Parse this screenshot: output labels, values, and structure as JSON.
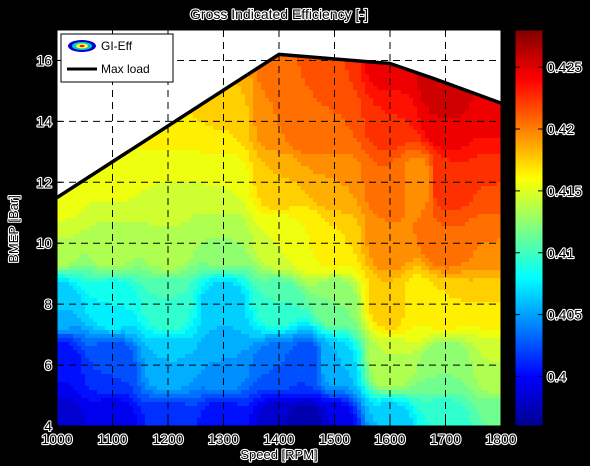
{
  "chart_data": {
    "type": "contour",
    "title": "Gross Indicated Efficiency [-]",
    "xlabel": "Speed [RPM]",
    "ylabel": "BMEP [Bar]",
    "xlim": [
      1000,
      1800
    ],
    "ylim": [
      4,
      17
    ],
    "xticks": [
      1000,
      1100,
      1200,
      1300,
      1400,
      1500,
      1600,
      1700,
      1800
    ],
    "yticks": [
      4,
      6,
      8,
      10,
      12,
      14,
      16
    ],
    "grid": true,
    "colorbar": {
      "min": 0.396,
      "max": 0.428,
      "ticks": [
        0.4,
        0.405,
        0.41,
        0.415,
        0.42,
        0.425
      ]
    },
    "legend": {
      "placement": "top-left",
      "entries": [
        "GI-Eff",
        "Max load"
      ]
    },
    "max_load": {
      "x": [
        1000,
        1400,
        1600,
        1680,
        1800
      ],
      "y": [
        11.5,
        16.2,
        15.9,
        15.4,
        14.6
      ]
    },
    "anchors": [
      {
        "x": 1000,
        "y": 4,
        "v": 0.398
      },
      {
        "x": 1000,
        "y": 6,
        "v": 0.4
      },
      {
        "x": 1000,
        "y": 8,
        "v": 0.406
      },
      {
        "x": 1000,
        "y": 10,
        "v": 0.414
      },
      {
        "x": 1000,
        "y": 11.5,
        "v": 0.416
      },
      {
        "x": 1100,
        "y": 4,
        "v": 0.399
      },
      {
        "x": 1100,
        "y": 6,
        "v": 0.402
      },
      {
        "x": 1100,
        "y": 8,
        "v": 0.408
      },
      {
        "x": 1100,
        "y": 10,
        "v": 0.414
      },
      {
        "x": 1100,
        "y": 12.5,
        "v": 0.416
      },
      {
        "x": 1200,
        "y": 4,
        "v": 0.401
      },
      {
        "x": 1200,
        "y": 6,
        "v": 0.406
      },
      {
        "x": 1200,
        "y": 8,
        "v": 0.41
      },
      {
        "x": 1200,
        "y": 10,
        "v": 0.414
      },
      {
        "x": 1200,
        "y": 12,
        "v": 0.415
      },
      {
        "x": 1200,
        "y": 14,
        "v": 0.417
      },
      {
        "x": 1300,
        "y": 4,
        "v": 0.4
      },
      {
        "x": 1300,
        "y": 6,
        "v": 0.405
      },
      {
        "x": 1300,
        "y": 8,
        "v": 0.406
      },
      {
        "x": 1300,
        "y": 10,
        "v": 0.413
      },
      {
        "x": 1300,
        "y": 12,
        "v": 0.415
      },
      {
        "x": 1300,
        "y": 14,
        "v": 0.417
      },
      {
        "x": 1300,
        "y": 15.2,
        "v": 0.418
      },
      {
        "x": 1400,
        "y": 4,
        "v": 0.398
      },
      {
        "x": 1400,
        "y": 6,
        "v": 0.403
      },
      {
        "x": 1400,
        "y": 8,
        "v": 0.41
      },
      {
        "x": 1400,
        "y": 10,
        "v": 0.415
      },
      {
        "x": 1400,
        "y": 12,
        "v": 0.418
      },
      {
        "x": 1400,
        "y": 14,
        "v": 0.42
      },
      {
        "x": 1400,
        "y": 16,
        "v": 0.421
      },
      {
        "x": 1450,
        "y": 4,
        "v": 0.397
      },
      {
        "x": 1450,
        "y": 6,
        "v": 0.402
      },
      {
        "x": 1450,
        "y": 10,
        "v": 0.416
      },
      {
        "x": 1450,
        "y": 14,
        "v": 0.421
      },
      {
        "x": 1500,
        "y": 4,
        "v": 0.399
      },
      {
        "x": 1500,
        "y": 6,
        "v": 0.406
      },
      {
        "x": 1500,
        "y": 8,
        "v": 0.412
      },
      {
        "x": 1500,
        "y": 10,
        "v": 0.417
      },
      {
        "x": 1500,
        "y": 12,
        "v": 0.419
      },
      {
        "x": 1500,
        "y": 14,
        "v": 0.421
      },
      {
        "x": 1500,
        "y": 16,
        "v": 0.422
      },
      {
        "x": 1600,
        "y": 4,
        "v": 0.406
      },
      {
        "x": 1600,
        "y": 6,
        "v": 0.414
      },
      {
        "x": 1600,
        "y": 8,
        "v": 0.418
      },
      {
        "x": 1600,
        "y": 10,
        "v": 0.42
      },
      {
        "x": 1600,
        "y": 12,
        "v": 0.421
      },
      {
        "x": 1600,
        "y": 14,
        "v": 0.423
      },
      {
        "x": 1600,
        "y": 15.9,
        "v": 0.425
      },
      {
        "x": 1650,
        "y": 8,
        "v": 0.416
      },
      {
        "x": 1650,
        "y": 12,
        "v": 0.419
      },
      {
        "x": 1700,
        "y": 4,
        "v": 0.409
      },
      {
        "x": 1700,
        "y": 6,
        "v": 0.412
      },
      {
        "x": 1700,
        "y": 8,
        "v": 0.417
      },
      {
        "x": 1700,
        "y": 10,
        "v": 0.421
      },
      {
        "x": 1700,
        "y": 12,
        "v": 0.423
      },
      {
        "x": 1700,
        "y": 14,
        "v": 0.425
      },
      {
        "x": 1700,
        "y": 15.2,
        "v": 0.426
      },
      {
        "x": 1800,
        "y": 4,
        "v": 0.411
      },
      {
        "x": 1800,
        "y": 6,
        "v": 0.414
      },
      {
        "x": 1800,
        "y": 8,
        "v": 0.417
      },
      {
        "x": 1800,
        "y": 10,
        "v": 0.42
      },
      {
        "x": 1800,
        "y": 12,
        "v": 0.422
      },
      {
        "x": 1800,
        "y": 14,
        "v": 0.424
      },
      {
        "x": 1800,
        "y": 14.6,
        "v": 0.425
      }
    ]
  }
}
